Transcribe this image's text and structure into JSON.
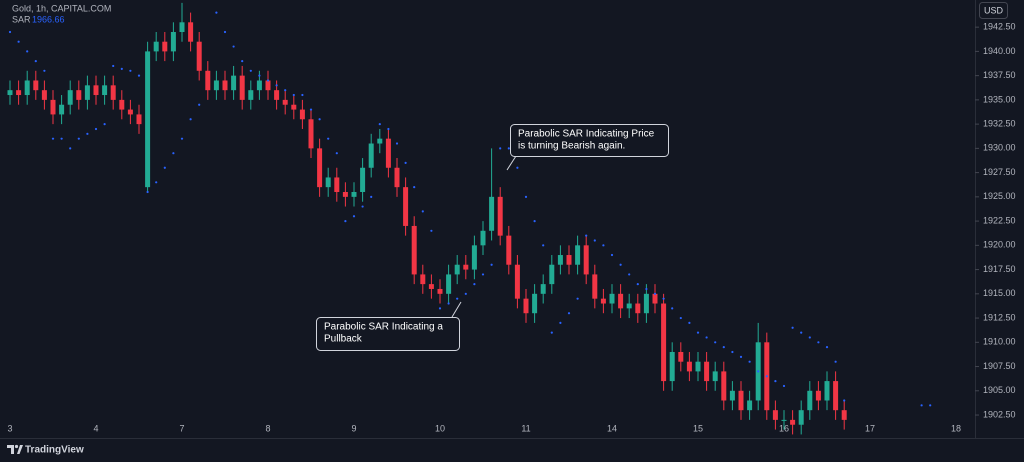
{
  "chart_data": {
    "type": "candlestick",
    "symbol": "Gold, 1h, CAPITAL.COM",
    "currency": "USD",
    "brand": "TradingView",
    "up_color": "#22ab94",
    "down_color": "#f23645",
    "categories": [
      "3",
      null,
      null,
      null,
      null,
      null,
      null,
      null,
      null,
      null,
      "4",
      null,
      null,
      null,
      null,
      null,
      null,
      null,
      null,
      null,
      "7",
      null,
      null,
      null,
      null,
      null,
      null,
      null,
      null,
      null,
      "8",
      null,
      null,
      null,
      null,
      null,
      null,
      null,
      null,
      null,
      "9",
      null,
      null,
      null,
      null,
      null,
      null,
      null,
      null,
      null,
      "10",
      null,
      null,
      null,
      null,
      null,
      null,
      null,
      null,
      null,
      "11",
      null,
      null,
      null,
      null,
      null,
      null,
      null,
      null,
      null,
      "14",
      null,
      null,
      null,
      null,
      null,
      null,
      null,
      null,
      null,
      "15",
      null,
      null,
      null,
      null,
      null,
      null,
      null,
      null,
      null,
      "16",
      null,
      null,
      null,
      null,
      null,
      null,
      null,
      null,
      null,
      "17",
      null,
      null,
      null,
      null,
      null,
      null,
      null,
      null,
      null,
      "18"
    ],
    "open": [
      1935.5,
      1936,
      1935.5,
      1937,
      1936,
      1935,
      1933.5,
      1934.5,
      1936,
      1935,
      1936.5,
      1935.5,
      1936.5,
      1935,
      1934,
      1933.5,
      1926,
      1940,
      1941,
      1940,
      1942,
      1943,
      1941,
      1938,
      1936,
      1937,
      1936,
      1937.5,
      1935,
      1936,
      1937,
      1936,
      1935,
      1934.5,
      1934,
      1933,
      1930,
      1926,
      1927,
      1925.5,
      1925,
      1925.5,
      1928,
      1930.5,
      1931,
      1928,
      1926,
      1922,
      1917,
      1916,
      1915.5,
      1915,
      1917,
      1918,
      1917.5,
      1920,
      1921.5,
      1925,
      1921,
      1918,
      1914.5,
      1913,
      1915,
      1916,
      1918,
      1919,
      1918,
      1920,
      1917,
      1914.5,
      1914,
      1915,
      1913.5,
      1914,
      1913,
      1915,
      1914,
      1906,
      1909,
      1908,
      1907,
      1908,
      1906,
      1907,
      1904,
      1905,
      1903,
      1904,
      1910,
      1903,
      1902,
      1902,
      1901.5,
      1903,
      1905,
      1904,
      1906,
      1903,
      null,
      null,
      null,
      null,
      null,
      null,
      null,
      null,
      null,
      null,
      null,
      null,
      null
    ],
    "high": [
      1937,
      1937,
      1938,
      1938,
      1937,
      1936,
      1935.5,
      1937,
      1937,
      1937.5,
      1937.5,
      1937.5,
      1937.5,
      1936,
      1935,
      1934.5,
      1941,
      1942,
      1942,
      1943,
      1945,
      1944,
      1942,
      1939,
      1938,
      1938,
      1938.5,
      1938.5,
      1937,
      1938,
      1938,
      1937,
      1936,
      1935.5,
      1935,
      1934,
      1931,
      1928,
      1928,
      1926.5,
      1926.5,
      1929,
      1931.5,
      1932,
      1932,
      1929,
      1927,
      1923,
      1918,
      1917,
      1916.5,
      1918,
      1919,
      1919,
      1921,
      1922.5,
      1930,
      1926,
      1922,
      1919,
      1915.5,
      1916,
      1917,
      1919,
      1920,
      1920,
      1921,
      1921,
      1918,
      1915.5,
      1916,
      1916,
      1915,
      1915,
      1916,
      1916,
      1915,
      1910,
      1910,
      1909,
      1909,
      1909,
      1908,
      1908,
      1906,
      1906,
      1905,
      1912,
      1911,
      1904,
      1903,
      1903,
      1904,
      1906,
      1906,
      1907,
      1907,
      1904,
      null,
      null,
      null,
      null,
      null,
      null,
      null,
      null,
      null,
      null,
      null,
      null,
      null
    ],
    "low": [
      1934.5,
      1934.5,
      1934.5,
      1935,
      1934,
      1932.5,
      1932.5,
      1933.5,
      1934,
      1934,
      1934.5,
      1934.5,
      1934,
      1933,
      1932.5,
      1931.5,
      1925.5,
      1939,
      1939,
      1939,
      1941,
      1940,
      1937,
      1935,
      1935,
      1935,
      1935,
      1934,
      1934,
      1935,
      1935,
      1934,
      1933.5,
      1933,
      1932,
      1929,
      1925,
      1925,
      1924.5,
      1924,
      1924,
      1924.5,
      1927,
      1929.5,
      1927,
      1925,
      1921,
      1916,
      1915,
      1914.5,
      1914,
      1914,
      1916,
      1916.5,
      1916.5,
      1919,
      1920.5,
      1920,
      1917,
      1913.5,
      1912,
      1912,
      1914,
      1915,
      1917,
      1917,
      1917,
      1916,
      1913.5,
      1913,
      1913,
      1912.5,
      1912.5,
      1912,
      1912,
      1913,
      1905,
      1905,
      1907,
      1906,
      1906,
      1905,
      1905,
      1903,
      1903,
      1902,
      1902,
      1903,
      1902,
      1901,
      1901,
      1900.5,
      1900.5,
      1902,
      1903,
      1903,
      1902,
      1901,
      null,
      null,
      null,
      null,
      null,
      null,
      null,
      null,
      null,
      null,
      null,
      null,
      null
    ],
    "close": [
      1936,
      1935.5,
      1937,
      1936,
      1935,
      1933.5,
      1934.5,
      1936,
      1935,
      1936.5,
      1935.5,
      1936.5,
      1935,
      1934,
      1933.5,
      1932.5,
      1940,
      1941,
      1940,
      1942,
      1943,
      1941,
      1938,
      1936,
      1937,
      1936,
      1937.5,
      1935,
      1936,
      1937,
      1936,
      1935,
      1934.5,
      1934,
      1933,
      1930,
      1926,
      1927,
      1925.5,
      1925,
      1925.5,
      1928,
      1930.5,
      1931,
      1928,
      1926,
      1922,
      1917,
      1916,
      1915.5,
      1915,
      1917,
      1918,
      1917.5,
      1920,
      1921.5,
      1925,
      1921,
      1918,
      1914.5,
      1913,
      1915,
      1916,
      1918,
      1919,
      1918,
      1920,
      1917,
      1914.5,
      1914,
      1915,
      1913.5,
      1914,
      1913,
      1915,
      1914,
      1906,
      1909,
      1908,
      1907,
      1908,
      1906,
      1907,
      1904,
      1905,
      1903,
      1904,
      1910,
      1903,
      1902,
      1902,
      1901.5,
      1903,
      1905,
      1904,
      1906,
      1903,
      1902,
      null,
      null,
      null,
      null,
      null,
      null,
      null,
      null,
      null,
      null,
      null,
      null,
      null
    ],
    "series": [
      {
        "name": "SAR",
        "color": "#2962ff",
        "last_value": 1966.66,
        "values": [
          1942,
          1941,
          1940,
          1939,
          1938,
          1931,
          1931,
          1930,
          1931,
          1931.5,
          1932,
          1932.5,
          1938.5,
          1938.2,
          1938,
          1937.5,
          1925.5,
          1926.5,
          1928,
          1929.5,
          1931,
          1933,
          1934.5,
          1945.5,
          1944,
          1942,
          1940.5,
          1939,
          1938,
          1937.5,
          1937,
          1936.5,
          1936,
          1935.5,
          1935.5,
          1934,
          1933,
          1931,
          1929.5,
          1922.5,
          1923,
          1924,
          1925,
          1932.5,
          1932,
          1930.5,
          1928.5,
          1926,
          1923.5,
          1921.5,
          1913.5,
          1914,
          1914.5,
          1915,
          1916,
          1917,
          1918,
          1930,
          1930,
          1928,
          1925,
          1922.5,
          1920,
          1911,
          1912,
          1913,
          1914.5,
          1921,
          1920.5,
          1920,
          1919,
          1918,
          1917,
          1916,
          1915.5,
          1915,
          1914.5,
          1913.5,
          1912.5,
          1912,
          1911,
          1910.5,
          1910,
          1909.5,
          1909,
          1908.5,
          1908,
          1907,
          1906.5,
          1906,
          1905.5,
          1911.5,
          1911,
          1910.5,
          1910,
          1909.5,
          1908,
          1904,
          null,
          null,
          null,
          null,
          null,
          null,
          null,
          null,
          1903.5,
          1903.5,
          null,
          null,
          null
        ]
      }
    ],
    "ylim": [
      1900.75,
      1945.3
    ],
    "yticks": [
      {
        "value": 1902.5,
        "label": "1902.50"
      },
      {
        "value": 1905,
        "label": "1905.00"
      },
      {
        "value": 1907.5,
        "label": "1907.50"
      },
      {
        "value": 1910,
        "label": "1910.00"
      },
      {
        "value": 1912.5,
        "label": "1912.50"
      },
      {
        "value": 1915,
        "label": "1915.00"
      },
      {
        "value": 1917.5,
        "label": "1917.50"
      },
      {
        "value": 1920,
        "label": "1920.00"
      },
      {
        "value": 1922.5,
        "label": "1922.50"
      },
      {
        "value": 1925,
        "label": "1925.00"
      },
      {
        "value": 1927.5,
        "label": "1927.50"
      },
      {
        "value": 1930,
        "label": "1930.00"
      },
      {
        "value": 1932.5,
        "label": "1932.50"
      },
      {
        "value": 1935,
        "label": "1935.00"
      },
      {
        "value": 1937.5,
        "label": "1937.50"
      },
      {
        "value": 1940,
        "label": "1940.00"
      },
      {
        "value": 1942.5,
        "label": "1942.50"
      }
    ],
    "grid": false,
    "annotations": [
      {
        "lines": [
          "Parabolic SAR Indicating Price",
          "is turning Bearish again."
        ]
      },
      {
        "lines": [
          "Parabolic SAR Indicating a",
          "Pullback"
        ]
      }
    ]
  }
}
